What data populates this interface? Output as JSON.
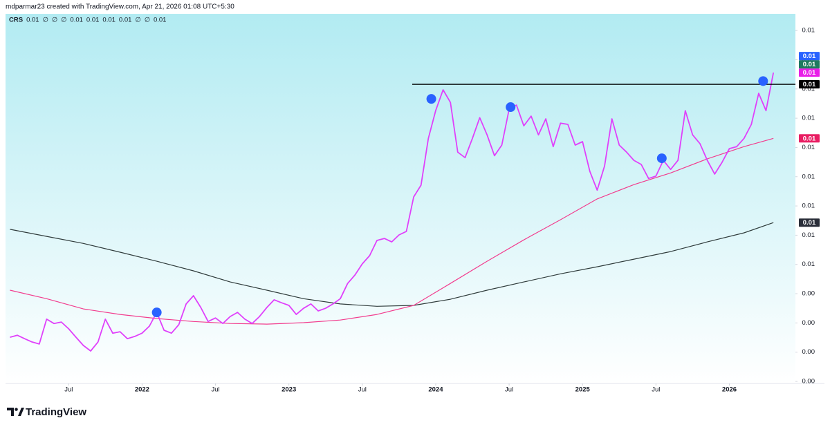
{
  "chart_data": {
    "type": "line",
    "header": "mdparmar23 created with TradingView.com, Apr 21, 2026 01:08 UTC+5:30",
    "legend": [
      {
        "text": "CRS",
        "color": "#131722"
      },
      {
        "text": "0.01",
        "color": "#e91e63"
      },
      {
        "text": "∅",
        "color": "#787b86"
      },
      {
        "text": "∅",
        "color": "#787b86"
      },
      {
        "text": "∅",
        "color": "#787b86"
      },
      {
        "text": "0.01",
        "color": "#089981"
      },
      {
        "text": "0.01",
        "color": "#089981"
      },
      {
        "text": "0.01",
        "color": "#089981"
      },
      {
        "text": "0.01",
        "color": "#e040fb"
      },
      {
        "text": "∅",
        "color": "#787b86"
      },
      {
        "text": "∅",
        "color": "#787b86"
      },
      {
        "text": "0.01",
        "color": "#089981"
      }
    ],
    "footer": "TradingView",
    "xlim": [
      2021.07,
      2026.45
    ],
    "xticks": [
      {
        "value": 2021.5,
        "label": "Jul"
      },
      2022,
      {
        "value": 2022.5,
        "label": "Jul"
      },
      2023,
      {
        "value": 2023.5,
        "label": "Jul"
      },
      2024,
      {
        "value": 2024.5,
        "label": "Jul"
      },
      2025,
      {
        "value": 2025.5,
        "label": "Jul"
      },
      2026
    ],
    "ylim": [
      0.00093,
      0.01357
    ],
    "yticks": [
      {
        "value": 0.013,
        "label": "0.01"
      },
      {
        "value": 0.012,
        "label": "0.01"
      },
      {
        "value": 0.011,
        "label": "0.01"
      },
      {
        "value": 0.01,
        "label": "0.01"
      },
      {
        "value": 0.009,
        "label": "0.01"
      },
      {
        "value": 0.008,
        "label": "0.01"
      },
      {
        "value": 0.007,
        "label": "0.01"
      },
      {
        "value": 0.006,
        "label": "0.01"
      },
      {
        "value": 0.005,
        "label": "0.01"
      },
      {
        "value": 0.004,
        "label": "0.00"
      },
      {
        "value": 0.003,
        "label": "0.00"
      },
      {
        "value": 0.002,
        "label": "0.00"
      },
      {
        "value": 0.001,
        "label": "0.00"
      }
    ],
    "grid": false,
    "series": [
      {
        "color": "#2f3b3b",
        "width": 1.2,
        "last_label": "0.01",
        "x": [
          2021.1,
          2021.35,
          2021.6,
          2021.85,
          2022.1,
          2022.35,
          2022.6,
          2022.85,
          2023.1,
          2023.35,
          2023.6,
          2023.85,
          2024.1,
          2024.35,
          2024.6,
          2024.85,
          2025.1,
          2025.35,
          2025.6,
          2025.85,
          2026.1,
          2026.3
        ],
        "values": [
          0.0062,
          0.00596,
          0.00572,
          0.00542,
          0.00511,
          0.00478,
          0.0044,
          0.00412,
          0.00383,
          0.00365,
          0.00357,
          0.0036,
          0.00381,
          0.00412,
          0.0044,
          0.00468,
          0.00492,
          0.00518,
          0.00544,
          0.00577,
          0.00608,
          0.00643
        ]
      },
      {
        "color": "#f23d8e",
        "width": 1.2,
        "last_label": "0.01",
        "x": [
          2021.1,
          2021.35,
          2021.6,
          2021.85,
          2022.1,
          2022.35,
          2022.6,
          2022.85,
          2023.1,
          2023.35,
          2023.6,
          2023.85,
          2024.1,
          2024.35,
          2024.6,
          2024.85,
          2025.1,
          2025.35,
          2025.6,
          2025.85,
          2026.1,
          2026.3
        ],
        "values": [
          0.00412,
          0.00383,
          0.00348,
          0.00329,
          0.00315,
          0.00305,
          0.00298,
          0.00296,
          0.00301,
          0.0031,
          0.00329,
          0.0036,
          0.00435,
          0.00511,
          0.00584,
          0.00653,
          0.00724,
          0.00773,
          0.00813,
          0.00861,
          0.00903,
          0.00931
        ]
      },
      {
        "color": "#e040fb",
        "width": 1.8,
        "last_label": "0.01",
        "x": [
          2021.1,
          2021.15,
          2021.2,
          2021.25,
          2021.3,
          2021.35,
          2021.4,
          2021.45,
          2021.5,
          2021.55,
          2021.6,
          2021.65,
          2021.7,
          2021.75,
          2021.8,
          2021.85,
          2021.9,
          2021.95,
          2022,
          2022.05,
          2022.1,
          2022.15,
          2022.2,
          2022.25,
          2022.3,
          2022.35,
          2022.4,
          2022.45,
          2022.5,
          2022.55,
          2022.6,
          2022.65,
          2022.7,
          2022.75,
          2022.8,
          2022.85,
          2022.9,
          2022.95,
          2023,
          2023.05,
          2023.1,
          2023.15,
          2023.2,
          2023.25,
          2023.3,
          2023.35,
          2023.4,
          2023.45,
          2023.5,
          2023.55,
          2023.6,
          2023.65,
          2023.7,
          2023.75,
          2023.8,
          2023.85,
          2023.9,
          2023.95,
          2024,
          2024.05,
          2024.1,
          2024.15,
          2024.2,
          2024.25,
          2024.3,
          2024.35,
          2024.4,
          2024.45,
          2024.5,
          2024.55,
          2024.6,
          2024.65,
          2024.7,
          2024.75,
          2024.8,
          2024.85,
          2024.9,
          2024.95,
          2025,
          2025.05,
          2025.1,
          2025.15,
          2025.2,
          2025.25,
          2025.3,
          2025.35,
          2025.4,
          2025.45,
          2025.5,
          2025.55,
          2025.6,
          2025.65,
          2025.7,
          2025.75,
          2025.8,
          2025.85,
          2025.9,
          2025.95,
          2026,
          2026.05,
          2026.1,
          2026.15,
          2026.2,
          2026.25,
          2026.3
        ],
        "values": [
          0.00251,
          0.00258,
          0.00246,
          0.00235,
          0.00228,
          0.00313,
          0.00298,
          0.00303,
          0.0028,
          0.00251,
          0.00223,
          0.00204,
          0.00235,
          0.00313,
          0.00265,
          0.0027,
          0.00246,
          0.00254,
          0.00265,
          0.00289,
          0.00336,
          0.00275,
          0.00265,
          0.00294,
          0.00365,
          0.00393,
          0.00353,
          0.00305,
          0.00317,
          0.00298,
          0.00322,
          0.00336,
          0.00313,
          0.00298,
          0.00322,
          0.00353,
          0.00379,
          0.00369,
          0.0036,
          0.00329,
          0.0035,
          0.00365,
          0.00341,
          0.0035,
          0.00365,
          0.00383,
          0.00435,
          0.00464,
          0.00502,
          0.0053,
          0.00582,
          0.00589,
          0.00577,
          0.00601,
          0.00613,
          0.00731,
          0.00771,
          0.00931,
          0.01026,
          0.01097,
          0.01054,
          0.00884,
          0.00865,
          0.00931,
          0.01002,
          0.00943,
          0.00872,
          0.00908,
          0.01031,
          0.01045,
          0.00974,
          0.01007,
          0.00943,
          0.00998,
          0.00903,
          0.00983,
          0.00979,
          0.00908,
          0.0092,
          0.00818,
          0.00754,
          0.00837,
          0.00998,
          0.00908,
          0.00884,
          0.00856,
          0.00842,
          0.00794,
          0.00802,
          0.00856,
          0.00825,
          0.00856,
          0.01026,
          0.00943,
          0.00913,
          0.00856,
          0.00809,
          0.00849,
          0.00896,
          0.00903,
          0.00931,
          0.00979,
          0.01085,
          0.01026,
          0.01156
        ]
      }
    ],
    "extra_badges": [
      {
        "label": "0.01",
        "color": "#1e7a5f"
      },
      {
        "label": "0.01",
        "color": "#2962ff"
      }
    ],
    "horizontal_line": {
      "value": 0.01116,
      "x_from": 2023.84,
      "label": "0.01",
      "color": "#000000"
    },
    "markers": {
      "color": "#2962ff",
      "x": [
        2022.1,
        2023.97,
        2024.51,
        2025.54,
        2026.23
      ],
      "values": [
        0.00336,
        0.01066,
        0.01038,
        0.00863,
        0.01127
      ]
    }
  }
}
